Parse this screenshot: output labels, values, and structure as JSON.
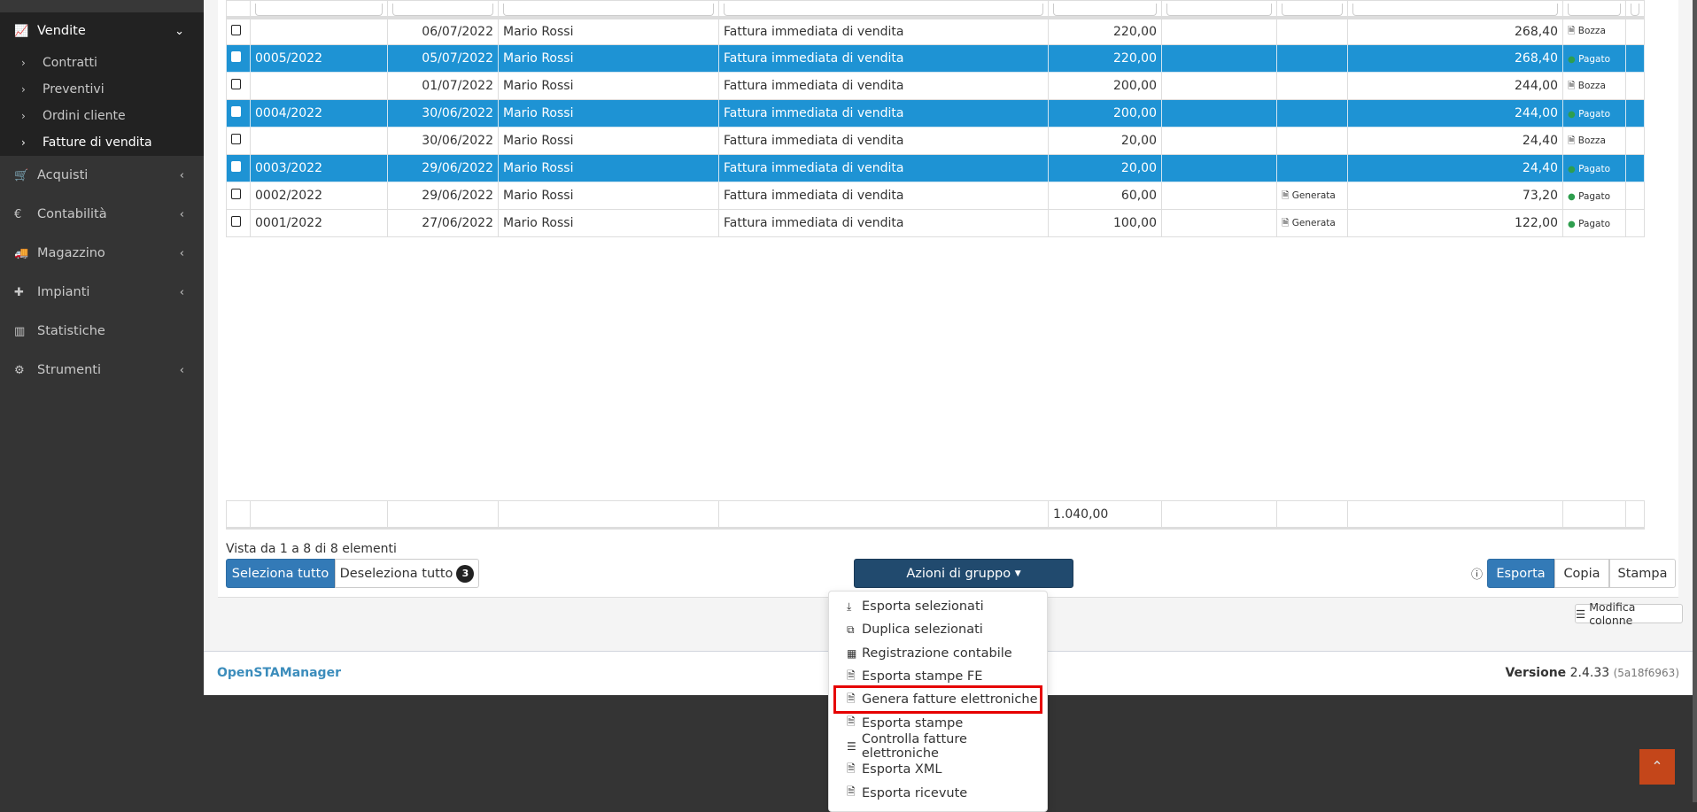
{
  "sidebar": {
    "items": [
      {
        "label": "Vendite",
        "icon": "line-chart-icon",
        "expanded": true,
        "sub": [
          {
            "label": "Contratti"
          },
          {
            "label": "Preventivi"
          },
          {
            "label": "Ordini cliente"
          },
          {
            "label": "Fatture di vendita",
            "current": true
          }
        ]
      },
      {
        "label": "Acquisti",
        "icon": "cart-icon"
      },
      {
        "label": "Contabilità",
        "icon": "euro-icon"
      },
      {
        "label": "Magazzino",
        "icon": "truck-icon"
      },
      {
        "label": "Impianti",
        "icon": "puzzle-icon"
      },
      {
        "label": "Statistiche",
        "icon": "bar-chart-icon"
      },
      {
        "label": "Strumenti",
        "icon": "gear-icon"
      }
    ]
  },
  "table": {
    "rows": [
      {
        "selected": false,
        "numero": "",
        "data": "06/07/2022",
        "cliente": "Mario Rossi",
        "tipo": "Fattura immediata di vendita",
        "imponibile": "220,00",
        "fe": "",
        "totale": "268,40",
        "stato": "Bozza"
      },
      {
        "selected": true,
        "numero": "0005/2022",
        "data": "05/07/2022",
        "cliente": "Mario Rossi",
        "tipo": "Fattura immediata di vendita",
        "imponibile": "220,00",
        "fe": "",
        "totale": "268,40",
        "stato": "Pagato"
      },
      {
        "selected": false,
        "numero": "",
        "data": "01/07/2022",
        "cliente": "Mario Rossi",
        "tipo": "Fattura immediata di vendita",
        "imponibile": "200,00",
        "fe": "",
        "totale": "244,00",
        "stato": "Bozza"
      },
      {
        "selected": true,
        "numero": "0004/2022",
        "data": "30/06/2022",
        "cliente": "Mario Rossi",
        "tipo": "Fattura immediata di vendita",
        "imponibile": "200,00",
        "fe": "",
        "totale": "244,00",
        "stato": "Pagato"
      },
      {
        "selected": false,
        "numero": "",
        "data": "30/06/2022",
        "cliente": "Mario Rossi",
        "tipo": "Fattura immediata di vendita",
        "imponibile": "20,00",
        "fe": "",
        "totale": "24,40",
        "stato": "Bozza"
      },
      {
        "selected": true,
        "numero": "0003/2022",
        "data": "29/06/2022",
        "cliente": "Mario Rossi",
        "tipo": "Fattura immediata di vendita",
        "imponibile": "20,00",
        "fe": "",
        "totale": "24,40",
        "stato": "Pagato"
      },
      {
        "selected": false,
        "numero": "0002/2022",
        "data": "29/06/2022",
        "cliente": "Mario Rossi",
        "tipo": "Fattura immediata di vendita",
        "imponibile": "60,00",
        "fe": "Generata",
        "totale": "73,20",
        "stato": "Pagato"
      },
      {
        "selected": false,
        "numero": "0001/2022",
        "data": "27/06/2022",
        "cliente": "Mario Rossi",
        "tipo": "Fattura immediata di vendita",
        "imponibile": "100,00",
        "fe": "Generata",
        "totale": "122,00",
        "stato": "Pagato"
      }
    ],
    "total_imponibile": "1.040,00"
  },
  "info": "Vista da 1 a 8 di 8 elementi",
  "buttons": {
    "select_all": "Seleziona tutto",
    "deselect_all": "Deseleziona tutto",
    "selected_count": "3",
    "group_actions": "Azioni di gruppo",
    "export": "Esporta",
    "copy": "Copia",
    "print": "Stampa",
    "edit_columns": "Modifica colonne"
  },
  "menu": [
    {
      "label": "Esporta selezionati",
      "icon": "download-icon",
      "glyph": "⤓"
    },
    {
      "label": "Duplica selezionati",
      "icon": "copy-icon",
      "glyph": "⧉"
    },
    {
      "label": "Registrazione contabile",
      "icon": "calculator-icon",
      "glyph": "▦"
    },
    {
      "label": "Esporta stampe FE",
      "icon": "file-pdf-icon",
      "glyph": "🗎"
    },
    {
      "label": "Genera fatture elettroniche",
      "icon": "file-code-icon",
      "glyph": "🗎",
      "highlighted": true
    },
    {
      "label": "Esporta stampe",
      "icon": "file-pdf-icon",
      "glyph": "🗎"
    },
    {
      "label": "Controlla fatture elettroniche",
      "icon": "list-icon",
      "glyph": "☰"
    },
    {
      "label": "Esporta XML",
      "icon": "file-pdf-icon",
      "glyph": "🗎"
    },
    {
      "label": "Esporta ricevute",
      "icon": "file-pdf-icon",
      "glyph": "🗎"
    }
  ],
  "footer": {
    "brand": "OpenSTAManager",
    "version_label": "Versione",
    "version": "2.4.33",
    "build": "(5a18f6963)"
  },
  "colors": {
    "selected_row": "#1e93d4",
    "primary": "#337ab7",
    "group_actions": "#214a6e",
    "highlight": "#e60000",
    "to_top": "#c4461a"
  }
}
